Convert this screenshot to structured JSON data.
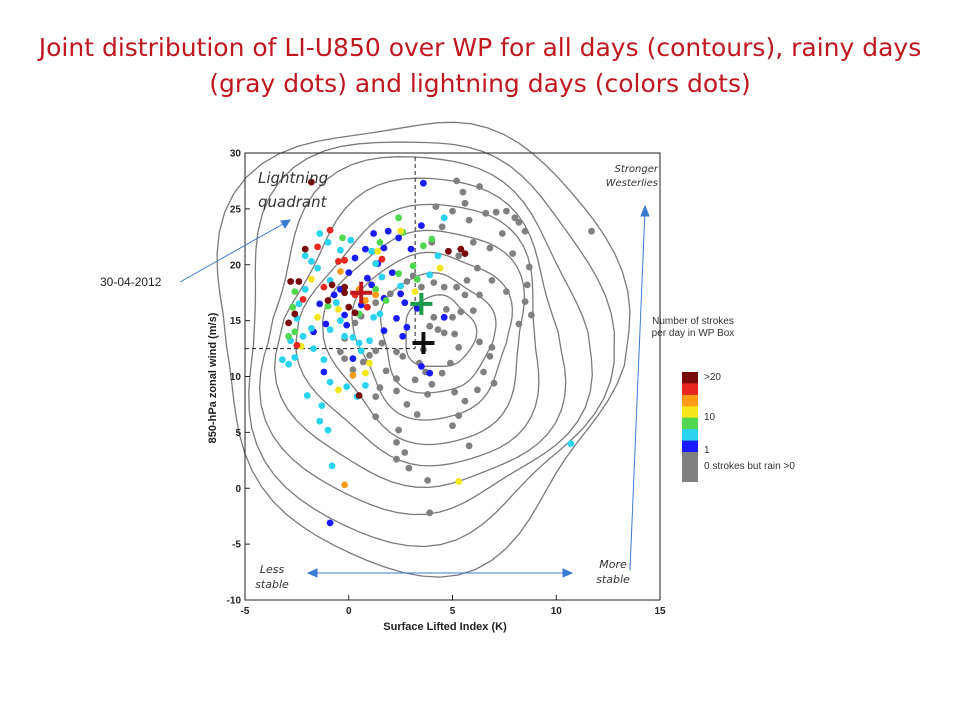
{
  "title": "Joint distribution of LI-U850 over WP for all days (contours), rainy days (gray dots) and lightning days (colors dots)",
  "chart_data": {
    "type": "scatter",
    "xlabel": "Surface Lifted Index (K)",
    "ylabel": "850-hPa zonal wind (m/s)",
    "xlim": [
      -5,
      15
    ],
    "ylim": [
      -10,
      30
    ],
    "xticks": [
      "-5",
      "0",
      "5",
      "10",
      "15"
    ],
    "yticks": [
      "-10",
      "-5",
      "0",
      "5",
      "10",
      "15",
      "20",
      "25",
      "30"
    ],
    "grid": false,
    "dashed_lines": {
      "x": 3.2,
      "y": 12.5
    },
    "mean_markers": [
      {
        "x": 3.6,
        "y": 13.0,
        "color": "#111111"
      },
      {
        "x": 3.5,
        "y": 16.5,
        "color": "#1a9a4a"
      },
      {
        "x": 0.6,
        "y": 17.5,
        "color": "#c0171f"
      }
    ],
    "contour_center": {
      "x": 4.5,
      "y": 14.0
    },
    "contour_levels": 9,
    "series": [
      {
        "name": "0 strokes but rain >0",
        "color": "#808080",
        "points": [
          [
            4.2,
            25.2
          ],
          [
            5.0,
            24.8
          ],
          [
            5.6,
            25.5
          ],
          [
            5.8,
            24.0
          ],
          [
            6.6,
            24.6
          ],
          [
            7.1,
            24.7
          ],
          [
            8.0,
            24.2
          ],
          [
            8.5,
            23.0
          ],
          [
            7.4,
            22.8
          ],
          [
            6.0,
            22.0
          ],
          [
            6.8,
            21.5
          ],
          [
            7.9,
            21.0
          ],
          [
            8.7,
            19.8
          ],
          [
            5.5,
            26.5
          ],
          [
            5.2,
            27.5
          ],
          [
            6.3,
            27.0
          ],
          [
            7.6,
            24.8
          ],
          [
            8.2,
            23.8
          ],
          [
            11.7,
            23.0
          ],
          [
            4.5,
            23.4
          ],
          [
            4.0,
            22.0
          ],
          [
            5.3,
            20.8
          ],
          [
            6.2,
            19.7
          ],
          [
            6.9,
            18.6
          ],
          [
            7.6,
            17.6
          ],
          [
            8.5,
            16.7
          ],
          [
            5.2,
            18.0
          ],
          [
            5.6,
            17.3
          ],
          [
            6.3,
            17.3
          ],
          [
            4.7,
            16.0
          ],
          [
            5.0,
            15.3
          ],
          [
            5.4,
            15.8
          ],
          [
            6.0,
            15.9
          ],
          [
            4.1,
            15.3
          ],
          [
            3.9,
            14.5
          ],
          [
            4.3,
            14.2
          ],
          [
            4.6,
            13.9
          ],
          [
            5.1,
            13.8
          ],
          [
            5.3,
            12.6
          ],
          [
            6.3,
            13.1
          ],
          [
            6.8,
            11.8
          ],
          [
            6.9,
            12.6
          ],
          [
            6.5,
            10.4
          ],
          [
            7.0,
            9.4
          ],
          [
            6.2,
            8.8
          ],
          [
            5.6,
            7.8
          ],
          [
            5.3,
            6.5
          ],
          [
            5.0,
            5.6
          ],
          [
            4.0,
            9.3
          ],
          [
            3.8,
            8.4
          ],
          [
            3.7,
            10.4
          ],
          [
            3.4,
            11.2
          ],
          [
            3.2,
            9.7
          ],
          [
            2.6,
            11.8
          ],
          [
            2.3,
            12.2
          ],
          [
            1.6,
            13.0
          ],
          [
            1.3,
            12.3
          ],
          [
            1.0,
            11.9
          ],
          [
            0.7,
            11.3
          ],
          [
            0.2,
            10.6
          ],
          [
            2.3,
            9.8
          ],
          [
            1.8,
            10.5
          ],
          [
            1.5,
            9.0
          ],
          [
            1.3,
            8.2
          ],
          [
            1.3,
            6.4
          ],
          [
            2.3,
            8.7
          ],
          [
            2.8,
            7.5
          ],
          [
            3.3,
            6.6
          ],
          [
            2.4,
            5.2
          ],
          [
            2.3,
            4.1
          ],
          [
            2.7,
            3.2
          ],
          [
            2.9,
            1.8
          ],
          [
            3.8,
            0.7
          ],
          [
            3.9,
            -2.2
          ],
          [
            -0.2,
            11.6
          ],
          [
            -0.4,
            12.2
          ],
          [
            -0.2,
            13.4
          ],
          [
            0.3,
            14.8
          ],
          [
            0.6,
            15.4
          ],
          [
            2.0,
            17.4
          ],
          [
            1.3,
            16.6
          ],
          [
            2.8,
            18.5
          ],
          [
            3.1,
            19.0
          ],
          [
            4.1,
            18.4
          ],
          [
            3.5,
            18.0
          ],
          [
            4.6,
            18.0
          ],
          [
            5.7,
            18.6
          ],
          [
            8.6,
            18.2
          ],
          [
            8.8,
            15.5
          ],
          [
            8.2,
            14.7
          ],
          [
            3.6,
            12.4
          ],
          [
            4.9,
            11.2
          ],
          [
            4.5,
            10.3
          ],
          [
            5.1,
            8.6
          ],
          [
            5.8,
            3.8
          ],
          [
            2.3,
            2.6
          ]
        ]
      },
      {
        "name": "1",
        "color": "#1a1aff",
        "points": [
          [
            1.7,
            21.5
          ],
          [
            2.4,
            22.4
          ],
          [
            1.2,
            22.8
          ],
          [
            0.8,
            21.4
          ],
          [
            0.3,
            20.6
          ],
          [
            0.0,
            19.3
          ],
          [
            -0.4,
            17.8
          ],
          [
            -0.7,
            17.3
          ],
          [
            -1.1,
            14.7
          ],
          [
            -0.1,
            14.6
          ],
          [
            0.6,
            16.4
          ],
          [
            1.1,
            18.2
          ],
          [
            1.7,
            17.0
          ],
          [
            2.5,
            17.4
          ],
          [
            2.7,
            16.6
          ],
          [
            2.3,
            15.2
          ],
          [
            2.8,
            14.4
          ],
          [
            2.6,
            13.6
          ],
          [
            3.3,
            16.1
          ],
          [
            3.0,
            21.4
          ],
          [
            3.5,
            23.5
          ],
          [
            3.6,
            27.3
          ],
          [
            4.6,
            15.3
          ],
          [
            3.5,
            10.9
          ],
          [
            3.9,
            10.3
          ],
          [
            -1.4,
            16.5
          ],
          [
            -1.7,
            14.0
          ],
          [
            0.2,
            11.6
          ],
          [
            1.7,
            14.1
          ],
          [
            0.9,
            18.8
          ],
          [
            -0.9,
            -3.1
          ],
          [
            1.9,
            23.0
          ],
          [
            1.4,
            20.1
          ],
          [
            -1.2,
            10.4
          ],
          [
            -0.2,
            15.5
          ],
          [
            2.1,
            19.3
          ]
        ]
      },
      {
        "name": "cyan",
        "color": "#2ad3f0",
        "points": [
          [
            -1.4,
            22.8
          ],
          [
            -1.8,
            20.3
          ],
          [
            -1.5,
            19.7
          ],
          [
            -2.1,
            20.8
          ],
          [
            -2.4,
            16.5
          ],
          [
            -2.1,
            17.8
          ],
          [
            -2.5,
            15.2
          ],
          [
            -1.8,
            14.3
          ],
          [
            -2.2,
            13.6
          ],
          [
            -2.9,
            11.1
          ],
          [
            -2.6,
            11.7
          ],
          [
            -0.9,
            18.6
          ],
          [
            -0.6,
            16.6
          ],
          [
            -0.4,
            15.0
          ],
          [
            -0.2,
            13.6
          ],
          [
            0.2,
            13.5
          ],
          [
            0.5,
            13.0
          ],
          [
            0.6,
            12.3
          ],
          [
            1.0,
            13.2
          ],
          [
            -0.9,
            14.2
          ],
          [
            -1.2,
            11.5
          ],
          [
            -2.0,
            8.3
          ],
          [
            -1.3,
            7.4
          ],
          [
            -1.0,
            5.2
          ],
          [
            -1.4,
            6.0
          ],
          [
            -0.9,
            9.5
          ],
          [
            -0.1,
            9.1
          ],
          [
            0.4,
            8.2
          ],
          [
            0.8,
            9.2
          ],
          [
            1.3,
            20.1
          ],
          [
            0.1,
            22.2
          ],
          [
            -0.4,
            21.3
          ],
          [
            -1.0,
            22.0
          ],
          [
            1.2,
            15.3
          ],
          [
            1.5,
            15.6
          ],
          [
            1.6,
            18.9
          ],
          [
            2.5,
            18.1
          ],
          [
            3.9,
            19.1
          ],
          [
            4.3,
            20.8
          ],
          [
            4.6,
            24.2
          ],
          [
            -1.7,
            12.5
          ],
          [
            -3.2,
            11.5
          ],
          [
            -2.8,
            13.2
          ],
          [
            10.7,
            4.0
          ],
          [
            1.1,
            21.2
          ],
          [
            -0.8,
            2.0
          ]
        ]
      },
      {
        "name": "green",
        "color": "#4fd84f",
        "points": [
          [
            2.4,
            24.2
          ],
          [
            2.6,
            22.9
          ],
          [
            3.6,
            21.7
          ],
          [
            4.0,
            22.3
          ],
          [
            3.1,
            19.9
          ],
          [
            2.4,
            19.2
          ],
          [
            1.8,
            16.8
          ],
          [
            0.5,
            15.6
          ],
          [
            -1.0,
            16.3
          ],
          [
            -2.6,
            14.0
          ],
          [
            -2.9,
            13.6
          ],
          [
            -2.7,
            16.2
          ],
          [
            -0.3,
            22.4
          ],
          [
            1.3,
            17.8
          ],
          [
            1.5,
            22.0
          ],
          [
            3.3,
            18.7
          ],
          [
            -2.6,
            17.6
          ]
        ]
      },
      {
        "name": "yellow",
        "color": "#f5e61c",
        "points": [
          [
            2.5,
            23.0
          ],
          [
            1.4,
            21.2
          ],
          [
            1.0,
            11.2
          ],
          [
            3.2,
            17.6
          ],
          [
            -0.5,
            16.0
          ],
          [
            -1.5,
            15.3
          ],
          [
            -2.3,
            12.7
          ],
          [
            4.4,
            19.7
          ],
          [
            -0.5,
            8.8
          ],
          [
            5.3,
            0.6
          ],
          [
            0.8,
            10.3
          ],
          [
            -1.8,
            18.7
          ]
        ]
      },
      {
        "name": "orange",
        "color": "#ff9a14",
        "points": [
          [
            0.5,
            17.8
          ],
          [
            0.8,
            16.8
          ],
          [
            1.3,
            17.3
          ],
          [
            -0.4,
            19.4
          ],
          [
            -0.2,
            0.3
          ],
          [
            0.2,
            10.1
          ]
        ]
      },
      {
        "name": "red",
        "color": "#e6261f",
        "points": [
          [
            -1.5,
            21.6
          ],
          [
            -1.2,
            18.0
          ],
          [
            -0.5,
            20.3
          ],
          [
            0.3,
            17.3
          ],
          [
            -0.9,
            23.1
          ],
          [
            1.6,
            20.5
          ],
          [
            -2.2,
            16.9
          ],
          [
            0.9,
            16.2
          ],
          [
            -2.5,
            12.8
          ],
          [
            -0.2,
            20.4
          ]
        ]
      },
      {
        "name": ">20",
        "color": "#7a0a0a",
        "points": [
          [
            -1.8,
            27.4
          ],
          [
            -2.1,
            21.4
          ],
          [
            -2.4,
            18.5
          ],
          [
            -2.8,
            18.5
          ],
          [
            -2.9,
            14.8
          ],
          [
            -2.6,
            15.6
          ],
          [
            -0.8,
            18.2
          ],
          [
            -0.2,
            17.5
          ],
          [
            0.0,
            16.2
          ],
          [
            0.3,
            15.7
          ],
          [
            4.8,
            21.2
          ],
          [
            5.4,
            21.4
          ],
          [
            0.5,
            8.3
          ],
          [
            -1.0,
            16.8
          ],
          [
            -0.2,
            18.0
          ],
          [
            5.6,
            21.0
          ]
        ]
      }
    ]
  },
  "annotations": {
    "lightning_quadrant": "Lightning quadrant",
    "stronger_westerlies": "Stronger Westerlies",
    "less_stable": "Less stable",
    "more_stable": "More stable",
    "date": "30-04-2012"
  },
  "legend": {
    "title": "Number of strokes per day in WP Box",
    "labels": [
      ">20",
      "10",
      "1",
      "0 strokes but rain >0"
    ],
    "colors": [
      "#7a0a0a",
      "#e6261f",
      "#ff9a14",
      "#f5e61c",
      "#4fd84f",
      "#2ad3f0",
      "#1a1aff",
      "#808080"
    ]
  }
}
